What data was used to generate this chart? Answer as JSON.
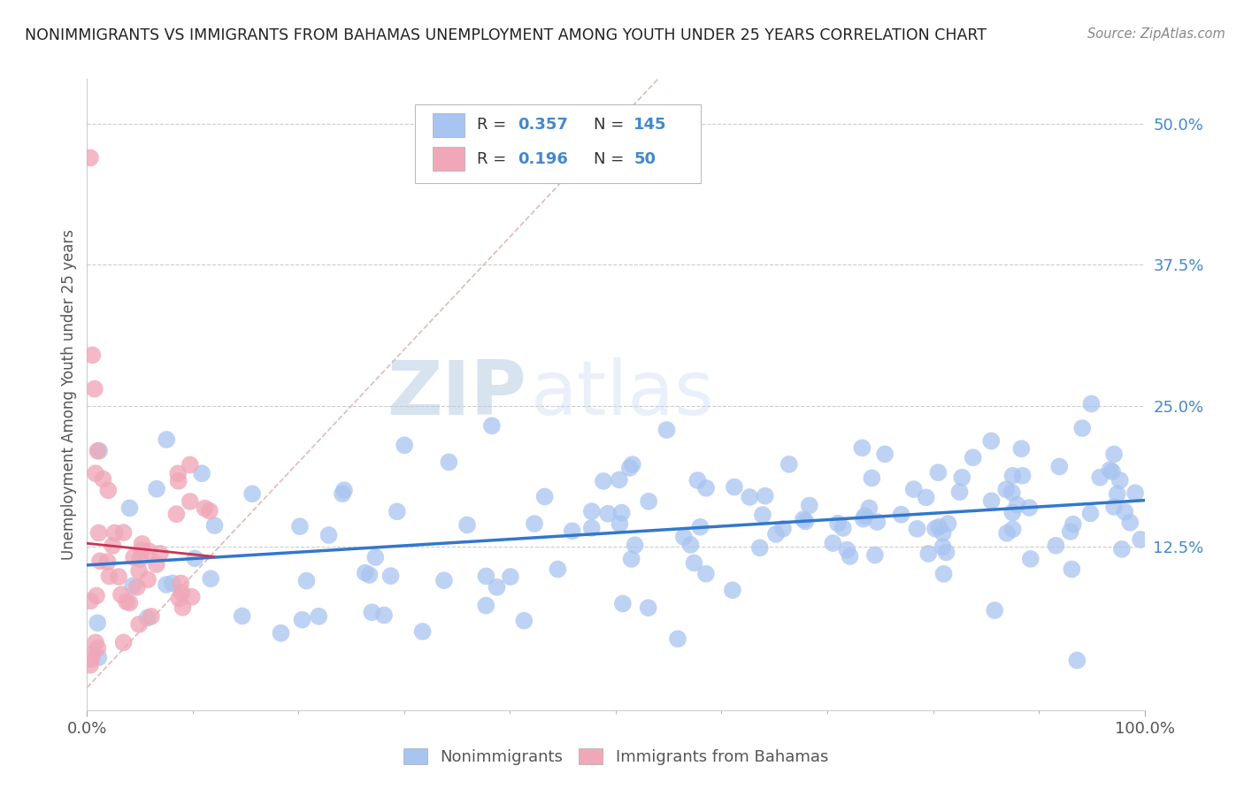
{
  "title": "NONIMMIGRANTS VS IMMIGRANTS FROM BAHAMAS UNEMPLOYMENT AMONG YOUTH UNDER 25 YEARS CORRELATION CHART",
  "source": "Source: ZipAtlas.com",
  "ylabel": "Unemployment Among Youth under 25 years",
  "xlim": [
    0.0,
    1.0
  ],
  "ylim": [
    -0.02,
    0.54
  ],
  "yticks": [
    0.0,
    0.125,
    0.25,
    0.375,
    0.5
  ],
  "ytick_labels": [
    "",
    "12.5%",
    "25.0%",
    "37.5%",
    "50.0%"
  ],
  "xticks": [
    0.0,
    1.0
  ],
  "xtick_labels": [
    "0.0%",
    "100.0%"
  ],
  "blue_R": 0.357,
  "blue_N": 145,
  "pink_R": 0.196,
  "pink_N": 50,
  "blue_color": "#a8c4f0",
  "pink_color": "#f0a8b8",
  "blue_line_color": "#3377cc",
  "pink_line_color": "#cc3355",
  "diagonal_color": "#ddbbbb",
  "grid_color": "#cccccc",
  "text_color_blue": "#4488cc",
  "text_color_title": "#222222",
  "watermark_zip": "ZIP",
  "watermark_atlas": "atlas",
  "legend_label_blue": "Nonimmigrants",
  "legend_label_pink": "Immigrants from Bahamas",
  "background_color": "#ffffff"
}
